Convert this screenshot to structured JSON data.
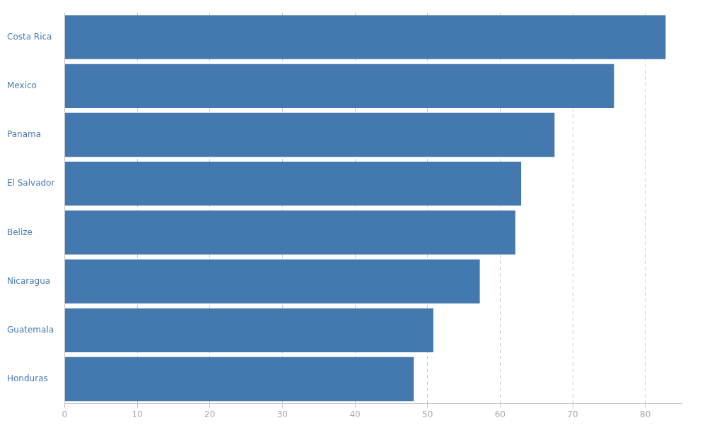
{
  "chart_data": {
    "type": "bar",
    "orientation": "horizontal",
    "categories": [
      "Costa Rica",
      "Mexico",
      "Panama",
      "El Salvador",
      "Belize",
      "Nicaragua",
      "Guatemala",
      "Honduras"
    ],
    "values": [
      82.8,
      75.7,
      67.5,
      62.9,
      62.1,
      57.2,
      50.8,
      48.1
    ],
    "color": "#4479b0",
    "xlim": [
      0,
      85
    ],
    "xticks": [
      0,
      10,
      20,
      30,
      40,
      50,
      60,
      70,
      80
    ],
    "grid": true
  }
}
